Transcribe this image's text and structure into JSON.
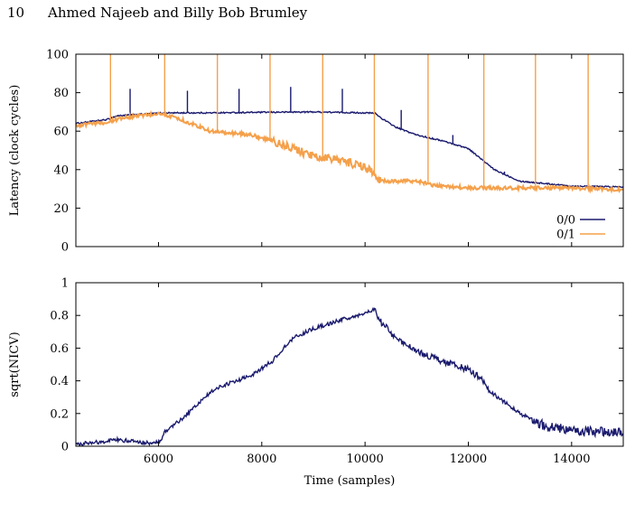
{
  "page": {
    "number": "10",
    "authors": "Ahmed Najeeb and Billy Bob Brumley"
  },
  "chart_data": [
    {
      "type": "line",
      "title": "",
      "xlabel": "",
      "ylabel": "Latency (clock cycles)",
      "xlim": [
        4400,
        15000
      ],
      "ylim": [
        0,
        100
      ],
      "xticks": [
        6000,
        8000,
        10000,
        12000,
        14000
      ],
      "xtick_labels_shown": false,
      "yticks": [
        0,
        20,
        40,
        60,
        80,
        100
      ],
      "legend": "bottom-right",
      "series": [
        {
          "name": "0/0",
          "color": "#1a1a6e",
          "x": [
            4400,
            5000,
            5200,
            5800,
            6100,
            7000,
            8000,
            9000,
            10000,
            10200,
            10300,
            10600,
            11000,
            11500,
            12000,
            12500,
            13000,
            14000,
            15000
          ],
          "y": [
            64,
            66,
            68,
            69,
            69.5,
            69.5,
            69.8,
            70,
            69.5,
            69.3,
            67,
            62,
            58,
            55,
            51,
            40,
            34,
            31.5,
            31
          ],
          "spikes": [
            [
              5450,
              82
            ],
            [
              6560,
              81
            ],
            [
              7560,
              82
            ],
            [
              8560,
              83
            ],
            [
              9560,
              82
            ],
            [
              10700,
              71
            ],
            [
              11700,
              58
            ],
            [
              12700,
              39
            ]
          ]
        },
        {
          "name": "0/1",
          "color": "#f5a04a",
          "x": [
            4400,
            5000,
            5300,
            6000,
            6300,
            7000,
            7800,
            8300,
            9000,
            9600,
            10100,
            10200,
            10300,
            11000,
            11300,
            12000,
            13000,
            14000,
            15000
          ],
          "y": [
            63,
            64.5,
            67,
            69,
            67.5,
            60,
            58,
            54,
            47,
            44.5,
            40,
            37,
            34,
            34,
            32,
            30.5,
            30.5,
            30.5,
            29.5
          ],
          "spikes": [
            [
              5070,
              100
            ],
            [
              6120,
              100
            ],
            [
              7140,
              100
            ],
            [
              8160,
              100
            ],
            [
              9180,
              100
            ],
            [
              10180,
              100
            ],
            [
              11220,
              100
            ],
            [
              12300,
              100
            ],
            [
              13300,
              100
            ],
            [
              14320,
              100
            ]
          ]
        }
      ]
    },
    {
      "type": "line",
      "title": "",
      "xlabel": "Time (samples)",
      "ylabel": "sqrt(NICV)",
      "xlim": [
        4400,
        15000
      ],
      "ylim": [
        0,
        1
      ],
      "xticks": [
        6000,
        8000,
        10000,
        12000,
        14000
      ],
      "yticks": [
        0,
        0.2,
        0.4,
        0.6,
        0.8,
        1
      ],
      "ytick_labels": [
        "0",
        "0.2",
        "0.4",
        "0.6",
        "0.8",
        "1"
      ],
      "series": [
        {
          "color": "#1a1a6e",
          "x": [
            4400,
            4600,
            5000,
            5200,
            5500,
            5800,
            6050,
            6100,
            6500,
            6900,
            7100,
            7500,
            7800,
            8200,
            8600,
            9000,
            9500,
            10000,
            10200,
            10250,
            10600,
            11000,
            11500,
            12000,
            12300,
            12400,
            13000,
            13500,
            14000,
            14500,
            15000
          ],
          "y": [
            0.01,
            0.02,
            0.03,
            0.04,
            0.03,
            0.02,
            0.03,
            0.08,
            0.18,
            0.3,
            0.35,
            0.4,
            0.43,
            0.52,
            0.66,
            0.72,
            0.77,
            0.81,
            0.84,
            0.78,
            0.66,
            0.58,
            0.52,
            0.47,
            0.4,
            0.34,
            0.2,
            0.12,
            0.1,
            0.09,
            0.09
          ]
        }
      ]
    }
  ]
}
